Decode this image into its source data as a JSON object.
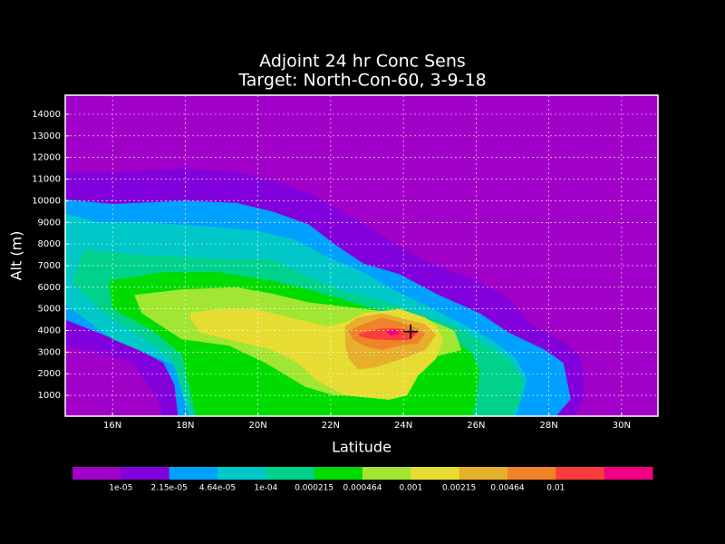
{
  "chart_data": {
    "type": "contour",
    "title": "Adjoint 24 hr Conc Sens",
    "subtitle": "Target: North-Con-60, 3-9-18",
    "x_label": "Latitude",
    "y_label": "Alt (m)",
    "xlim": [
      14.7,
      31.0
    ],
    "ylim": [
      40,
      14880
    ],
    "xticks": [
      {
        "value": 16,
        "label": "16N"
      },
      {
        "value": 18,
        "label": "18N"
      },
      {
        "value": 20,
        "label": "20N"
      },
      {
        "value": 22,
        "label": "22N"
      },
      {
        "value": 24,
        "label": "24N"
      },
      {
        "value": 26,
        "label": "26N"
      },
      {
        "value": 28,
        "label": "28N"
      },
      {
        "value": 30,
        "label": "30N"
      }
    ],
    "yticks": [
      1000,
      2000,
      3000,
      4000,
      5000,
      6000,
      7000,
      8000,
      9000,
      10000,
      11000,
      12000,
      13000,
      14000
    ],
    "grid": true,
    "levels": [
      {
        "value": 1e-05,
        "label": "1e-05"
      },
      {
        "value": 2.15e-05,
        "label": "2.15e-05"
      },
      {
        "value": 4.64e-05,
        "label": "4.64e-05"
      },
      {
        "value": 0.0001,
        "label": "1e-04"
      },
      0.000215,
      0.000464,
      0.001,
      0.00215,
      0.00464,
      0.01
    ],
    "colors": [
      "#a000c8",
      "#8200dc",
      "#00a0ff",
      "#00c8c8",
      "#00d28c",
      "#00dc00",
      "#a0e632",
      "#e6dc32",
      "#e6af2d",
      "#f08228",
      "#fa3c3c",
      "#f00082"
    ],
    "regions": [
      {
        "color": "#8200dc",
        "x": [
          14.7,
          16,
          18,
          19.5,
          20.5,
          21.5,
          22.5,
          23.5,
          24.6,
          25.9,
          26.9,
          27.5,
          28.4,
          28.9,
          29,
          28.7,
          17.4,
          17.2,
          16.5,
          14.7
        ],
        "y": [
          11300,
          11300,
          11500,
          11300,
          10900,
          10300,
          9300,
          8300,
          7200,
          6400,
          5500,
          4300,
          3500,
          2700,
          1000,
          40,
          40,
          1000,
          2600,
          3300
        ]
      },
      {
        "color": "#00a0ff",
        "x": [
          14.7,
          16,
          18,
          19.4,
          20.4,
          21.4,
          22.1,
          22.9,
          23.9,
          24.9,
          26.1,
          26.9,
          27.9,
          28.4,
          28.6,
          28.2,
          17.8,
          17.7,
          17.4,
          16.5,
          14.7
        ],
        "y": [
          10060,
          9850,
          10000,
          9900,
          9500,
          8900,
          8000,
          7100,
          6600,
          5700,
          4800,
          3900,
          3100,
          2500,
          830,
          40,
          40,
          1500,
          2500,
          3300,
          4500
        ]
      },
      {
        "color": "#00c8c8",
        "x": [
          14.7,
          15.6,
          17,
          18.7,
          20,
          21,
          21.9,
          22.9,
          23.7,
          24.7,
          25.4,
          26.4,
          27.1,
          27.4,
          27.1,
          18.1,
          17.7,
          16,
          14.7
        ],
        "y": [
          9400,
          9000,
          9000,
          8800,
          8600,
          8200,
          7400,
          6700,
          5900,
          5100,
          4500,
          3600,
          2700,
          1700,
          40,
          40,
          2400,
          3600,
          5200
        ]
      },
      {
        "color": "#00d28c",
        "x": [
          15.2,
          16.6,
          19.1,
          20.4,
          21.1,
          22.4,
          23.4,
          24.4,
          25.4,
          26.1,
          26.9,
          27.3,
          27.2,
          26.9,
          18.2,
          17.6,
          15.7,
          14.9
        ],
        "y": [
          7750,
          7500,
          7300,
          7300,
          6700,
          5800,
          5400,
          4800,
          4200,
          3500,
          2700,
          1700,
          600,
          40,
          40,
          2800,
          4900,
          6200
        ]
      },
      {
        "color": "#00dc00",
        "x": [
          15.9,
          17.4,
          18.9,
          20.4,
          21.4,
          22.4,
          23.6,
          24.6,
          25.4,
          25.9,
          26.1,
          26,
          25.9,
          18.3,
          17.9,
          17.1,
          16
        ],
        "y": [
          6300,
          6700,
          6700,
          6300,
          5900,
          5400,
          4800,
          4200,
          3600,
          2900,
          2100,
          800,
          40,
          40,
          2900,
          4000,
          5000
        ]
      },
      {
        "color": "#a0e632",
        "x": [
          16.6,
          17.9,
          19.4,
          20.4,
          21.4,
          22.4,
          23.4,
          24.4,
          25.4,
          25.6,
          24.9,
          24.2,
          23.1,
          22.1,
          21.3,
          20.2,
          19.2,
          17.9,
          16.8
        ],
        "y": [
          5650,
          5900,
          6000,
          5700,
          5300,
          5100,
          4900,
          4700,
          4000,
          3100,
          2800,
          1600,
          1000,
          1000,
          1400,
          2500,
          3300,
          3600,
          4800
        ]
      },
      {
        "color": "#e6dc32",
        "x": [
          18.1,
          18.9,
          19.9,
          20.9,
          21.9,
          22.4,
          22.9,
          23.9,
          24.6,
          24.9,
          25.1,
          24.9,
          24.4,
          24.1,
          23.6,
          22.4,
          21.6,
          21.1,
          20.4,
          19.4,
          18.4,
          18.2
        ],
        "y": [
          4800,
          5000,
          5000,
          4600,
          4200,
          4400,
          4800,
          5000,
          4600,
          4200,
          3600,
          2700,
          1900,
          1000,
          800,
          1000,
          1700,
          2500,
          3100,
          3500,
          3900,
          4400
        ]
      },
      {
        "color": "#e6af2d",
        "x": [
          22.4,
          22.75,
          23.4,
          23.9,
          24.6,
          24.9,
          24.6,
          24,
          23.6,
          23.25,
          22.75,
          22.5,
          22.4
        ],
        "y": [
          4200,
          4600,
          4800,
          4600,
          4300,
          3800,
          3100,
          2700,
          2500,
          2300,
          2200,
          2700,
          3300
        ]
      },
      {
        "color": "#f08228",
        "x": [
          22.5,
          22.9,
          23.4,
          23.9,
          24.4,
          24.6,
          24.4,
          23.9,
          23.4,
          22.9,
          22.6
        ],
        "y": [
          4000,
          4300,
          4600,
          4400,
          4100,
          3850,
          3400,
          3300,
          3100,
          3300,
          3600
        ]
      },
      {
        "color": "#fa3c3c",
        "x": [
          22.75,
          23.4,
          23.9,
          24.4,
          24.15,
          23.65,
          23.15,
          22.85
        ],
        "y": [
          3850,
          4100,
          4100,
          3900,
          3550,
          3550,
          3600,
          3700
        ]
      },
      {
        "color": "#f00082",
        "x": [
          23.5,
          23.75,
          23.9,
          23.65
        ],
        "y": [
          4000,
          4050,
          3850,
          3750
        ]
      }
    ],
    "target": {
      "x": 24.2,
      "y": 3950
    }
  }
}
